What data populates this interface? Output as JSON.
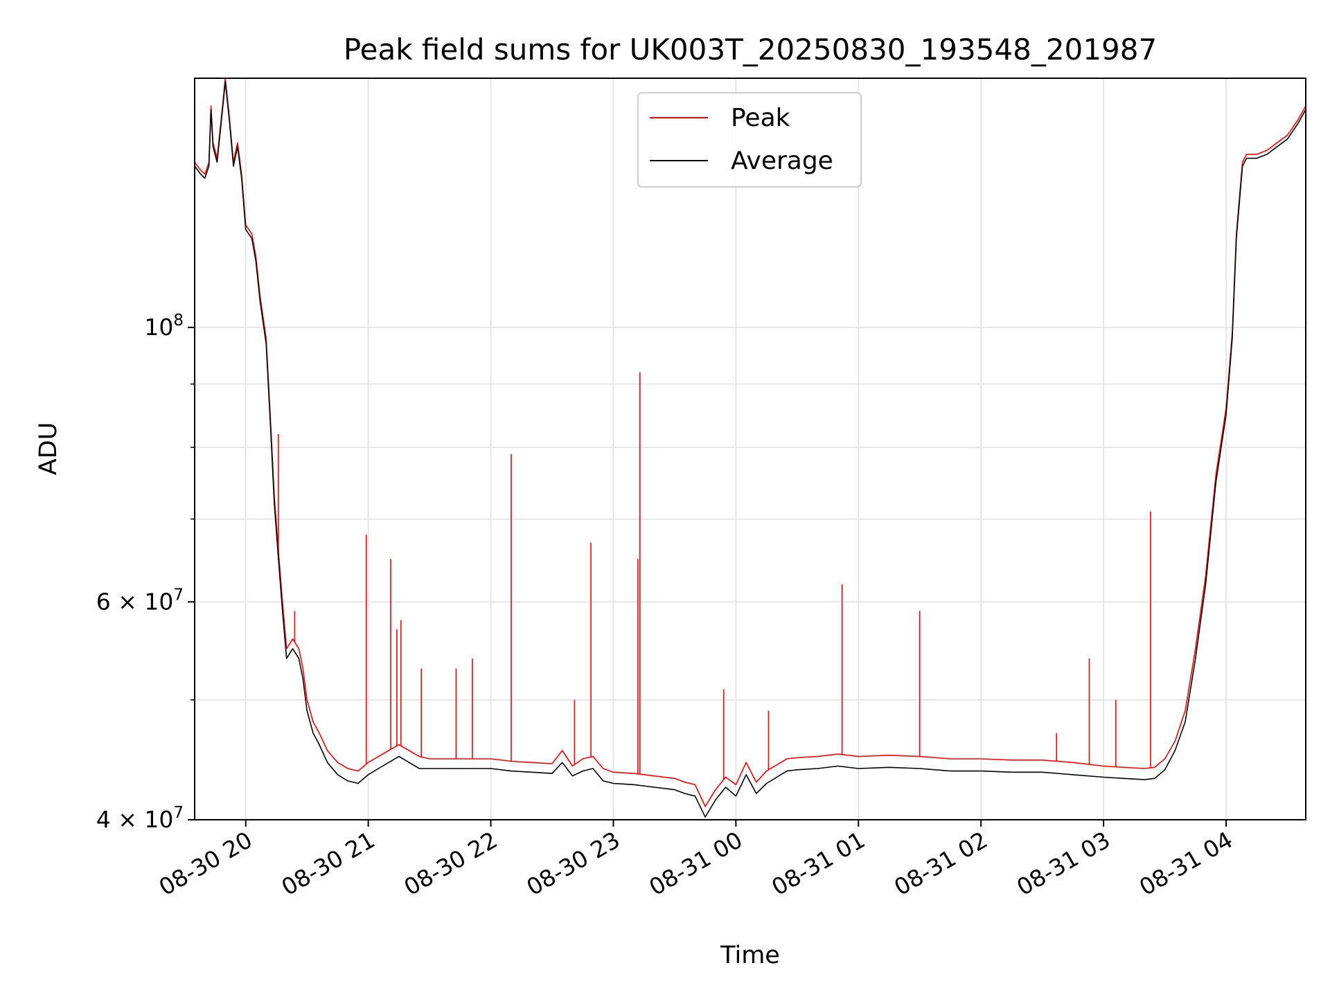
{
  "chart_data": {
    "type": "line",
    "title": "Peak field sums for UK003T_20250830_193548_201987",
    "xlabel": "Time",
    "ylabel": "ADU",
    "yscale": "log",
    "xlim": [
      "2025-08-30 19:35",
      "2025-08-31 04:39"
    ],
    "ylim": [
      40000000,
      159000000
    ],
    "grid": true,
    "legend_position": "top-center",
    "x_ticks": [
      "08-30 20",
      "08-30 21",
      "08-30 22",
      "08-30 23",
      "08-31 00",
      "08-31 01",
      "08-31 02",
      "08-31 03",
      "08-31 04"
    ],
    "y_tick_labels": [
      {
        "value": 100000000,
        "base": "10",
        "exp": "8"
      },
      {
        "value": 60000000,
        "base": "6 × 10",
        "exp": "7"
      },
      {
        "value": 40000000,
        "base": "4 × 10",
        "exp": "7"
      }
    ],
    "y_minor_ticks": [
      50000000,
      70000000,
      80000000,
      90000000
    ],
    "series": [
      {
        "name": "Average",
        "color": "#000000",
        "x": [
          "2025-08-30 19:35",
          "2025-08-30 19:38",
          "2025-08-30 19:40",
          "2025-08-30 19:42",
          "2025-08-30 19:43",
          "2025-08-30 19:44",
          "2025-08-30 19:46",
          "2025-08-30 19:49",
          "2025-08-30 19:50",
          "2025-08-30 19:52",
          "2025-08-30 19:54",
          "2025-08-30 19:56",
          "2025-08-30 19:58",
          "2025-08-30 20:00",
          "2025-08-30 20:03",
          "2025-08-30 20:05",
          "2025-08-30 20:07",
          "2025-08-30 20:10",
          "2025-08-30 20:12",
          "2025-08-30 20:14",
          "2025-08-30 20:16",
          "2025-08-30 20:18",
          "2025-08-30 20:20",
          "2025-08-30 20:23",
          "2025-08-30 20:26",
          "2025-08-30 20:28",
          "2025-08-30 20:30",
          "2025-08-30 20:33",
          "2025-08-30 20:36",
          "2025-08-30 20:40",
          "2025-08-30 20:45",
          "2025-08-30 20:50",
          "2025-08-30 20:55",
          "2025-08-30 21:00",
          "2025-08-30 21:05",
          "2025-08-30 21:10",
          "2025-08-30 21:15",
          "2025-08-30 21:20",
          "2025-08-30 21:25",
          "2025-08-30 21:30",
          "2025-08-30 21:40",
          "2025-08-30 21:50",
          "2025-08-30 22:00",
          "2025-08-30 22:10",
          "2025-08-30 22:20",
          "2025-08-30 22:30",
          "2025-08-30 22:35",
          "2025-08-30 22:40",
          "2025-08-30 22:45",
          "2025-08-30 22:50",
          "2025-08-30 22:55",
          "2025-08-30 23:00",
          "2025-08-30 23:10",
          "2025-08-30 23:20",
          "2025-08-30 23:30",
          "2025-08-30 23:35",
          "2025-08-30 23:40",
          "2025-08-30 23:45",
          "2025-08-30 23:50",
          "2025-08-30 23:55",
          "2025-08-31 00:00",
          "2025-08-31 00:05",
          "2025-08-31 00:10",
          "2025-08-31 00:15",
          "2025-08-31 00:20",
          "2025-08-31 00:25",
          "2025-08-31 00:30",
          "2025-08-31 00:40",
          "2025-08-31 00:50",
          "2025-08-31 01:00",
          "2025-08-31 01:15",
          "2025-08-31 01:30",
          "2025-08-31 01:45",
          "2025-08-31 02:00",
          "2025-08-31 02:15",
          "2025-08-31 02:30",
          "2025-08-31 02:45",
          "2025-08-31 03:00",
          "2025-08-31 03:10",
          "2025-08-31 03:20",
          "2025-08-31 03:25",
          "2025-08-31 03:30",
          "2025-08-31 03:35",
          "2025-08-31 03:40",
          "2025-08-31 03:45",
          "2025-08-31 03:50",
          "2025-08-31 03:55",
          "2025-08-31 04:00",
          "2025-08-31 04:03",
          "2025-08-31 04:05",
          "2025-08-31 04:08",
          "2025-08-31 04:10",
          "2025-08-31 04:15",
          "2025-08-31 04:20",
          "2025-08-31 04:25",
          "2025-08-31 04:30",
          "2025-08-31 04:35",
          "2025-08-31 04:39"
        ],
        "values": [
          135000000,
          133000000,
          132000000,
          135000000,
          150000000,
          140000000,
          136000000,
          152000000,
          158000000,
          147000000,
          135000000,
          140000000,
          132000000,
          120000000,
          118000000,
          113000000,
          105000000,
          97000000,
          84000000,
          72000000,
          65000000,
          59000000,
          54000000,
          55000000,
          54000000,
          52000000,
          49000000,
          47000000,
          46000000,
          44500000,
          43500000,
          43000000,
          42800000,
          43500000,
          44000000,
          44500000,
          45000000,
          44500000,
          44000000,
          44000000,
          44000000,
          44000000,
          44000000,
          43800000,
          43700000,
          43600000,
          44500000,
          43400000,
          43800000,
          44000000,
          43000000,
          42800000,
          42700000,
          42500000,
          42300000,
          42000000,
          41800000,
          40200000,
          41500000,
          42500000,
          41800000,
          43500000,
          42000000,
          42800000,
          43300000,
          43800000,
          43900000,
          44000000,
          44200000,
          44000000,
          44100000,
          44000000,
          43800000,
          43800000,
          43700000,
          43700000,
          43500000,
          43300000,
          43200000,
          43100000,
          43200000,
          43900000,
          45500000,
          48000000,
          54000000,
          62000000,
          75000000,
          85000000,
          98000000,
          118000000,
          135000000,
          137000000,
          137000000,
          138000000,
          140000000,
          142000000,
          146000000,
          150000000
        ]
      },
      {
        "name": "Peak",
        "color": "#ff0000",
        "x": [
          "2025-08-30 19:35",
          "2025-08-30 19:38",
          "2025-08-30 19:40",
          "2025-08-30 19:42",
          "2025-08-30 19:43",
          "2025-08-30 19:44",
          "2025-08-30 19:46",
          "2025-08-30 19:49",
          "2025-08-30 19:50",
          "2025-08-30 19:52",
          "2025-08-30 19:54",
          "2025-08-30 19:56",
          "2025-08-30 19:58",
          "2025-08-30 20:00",
          "2025-08-30 20:03",
          "2025-08-30 20:05",
          "2025-08-30 20:07",
          "2025-08-30 20:10",
          "2025-08-30 20:12",
          "2025-08-30 20:14",
          "2025-08-30 20:16",
          "2025-08-30 20:18",
          "2025-08-30 20:20",
          "2025-08-30 20:23",
          "2025-08-30 20:26",
          "2025-08-30 20:28",
          "2025-08-30 20:30",
          "2025-08-30 20:33",
          "2025-08-30 20:36",
          "2025-08-30 20:40",
          "2025-08-30 20:45",
          "2025-08-30 20:50",
          "2025-08-30 20:55",
          "2025-08-30 21:00",
          "2025-08-30 21:05",
          "2025-08-30 21:10",
          "2025-08-30 21:15",
          "2025-08-30 21:20",
          "2025-08-30 21:25",
          "2025-08-30 21:30",
          "2025-08-30 21:40",
          "2025-08-30 21:50",
          "2025-08-30 22:00",
          "2025-08-30 22:10",
          "2025-08-30 22:20",
          "2025-08-30 22:30",
          "2025-08-30 22:35",
          "2025-08-30 22:40",
          "2025-08-30 22:45",
          "2025-08-30 22:50",
          "2025-08-30 22:55",
          "2025-08-30 23:00",
          "2025-08-30 23:10",
          "2025-08-30 23:20",
          "2025-08-30 23:30",
          "2025-08-30 23:35",
          "2025-08-30 23:40",
          "2025-08-30 23:45",
          "2025-08-30 23:50",
          "2025-08-30 23:55",
          "2025-08-31 00:00",
          "2025-08-31 00:05",
          "2025-08-31 00:10",
          "2025-08-31 00:15",
          "2025-08-31 00:20",
          "2025-08-31 00:25",
          "2025-08-31 00:30",
          "2025-08-31 00:40",
          "2025-08-31 00:50",
          "2025-08-31 01:00",
          "2025-08-31 01:15",
          "2025-08-31 01:30",
          "2025-08-31 01:45",
          "2025-08-31 02:00",
          "2025-08-31 02:15",
          "2025-08-31 02:30",
          "2025-08-31 02:45",
          "2025-08-31 03:00",
          "2025-08-31 03:10",
          "2025-08-31 03:20",
          "2025-08-31 03:25",
          "2025-08-31 03:30",
          "2025-08-31 03:35",
          "2025-08-31 03:40",
          "2025-08-31 03:45",
          "2025-08-31 03:50",
          "2025-08-31 03:55",
          "2025-08-31 04:00",
          "2025-08-31 04:03",
          "2025-08-31 04:05",
          "2025-08-31 04:08",
          "2025-08-31 04:10",
          "2025-08-31 04:15",
          "2025-08-31 04:20",
          "2025-08-31 04:25",
          "2025-08-31 04:30",
          "2025-08-31 04:35",
          "2025-08-31 04:39"
        ],
        "values": [
          136000000,
          134000000,
          133000000,
          136000000,
          151000000,
          141000000,
          137000000,
          153000000,
          159000000,
          148000000,
          136000000,
          141000000,
          133000000,
          121000000,
          119000000,
          114000000,
          106000000,
          98000000,
          85000000,
          73000000,
          66000000,
          60000000,
          55000000,
          56000000,
          55000000,
          53000000,
          50000000,
          48000000,
          47000000,
          45500000,
          44500000,
          44000000,
          43800000,
          44500000,
          45000000,
          45500000,
          46000000,
          45500000,
          45000000,
          44800000,
          44800000,
          44800000,
          44800000,
          44600000,
          44500000,
          44400000,
          45500000,
          44200000,
          44800000,
          45000000,
          44000000,
          43700000,
          43600000,
          43400000,
          43200000,
          42900000,
          42700000,
          41000000,
          42300000,
          43300000,
          42700000,
          44500000,
          42900000,
          43800000,
          44300000,
          44800000,
          44900000,
          45000000,
          45200000,
          45000000,
          45100000,
          45000000,
          44800000,
          44800000,
          44700000,
          44700000,
          44500000,
          44200000,
          44100000,
          44000000,
          44100000,
          44800000,
          46300000,
          49000000,
          55000000,
          63000000,
          76000000,
          86000000,
          99000000,
          119000000,
          136000000,
          138000000,
          138000000,
          139000000,
          141000000,
          143000000,
          147000000,
          151000000
        ]
      }
    ],
    "spikes": {
      "series": "Peak",
      "x": [
        "2025-08-30 20:16",
        "2025-08-30 20:24",
        "2025-08-30 20:59",
        "2025-08-30 21:11",
        "2025-08-30 21:14",
        "2025-08-30 21:16",
        "2025-08-30 21:26",
        "2025-08-30 21:43",
        "2025-08-30 21:51",
        "2025-08-30 22:10",
        "2025-08-30 22:41",
        "2025-08-30 22:49",
        "2025-08-30 23:12",
        "2025-08-30 23:13",
        "2025-08-30 23:54",
        "2025-08-31 00:16",
        "2025-08-31 00:52",
        "2025-08-31 01:30",
        "2025-08-31 02:37",
        "2025-08-31 02:53",
        "2025-08-31 03:06",
        "2025-08-31 03:23"
      ],
      "values": [
        82000000,
        59000000,
        68000000,
        65000000,
        57000000,
        58000000,
        53000000,
        53000000,
        54000000,
        79000000,
        50000000,
        67000000,
        65000000,
        92000000,
        51000000,
        49000000,
        62000000,
        59000000,
        47000000,
        54000000,
        50000000,
        71000000
      ]
    }
  }
}
